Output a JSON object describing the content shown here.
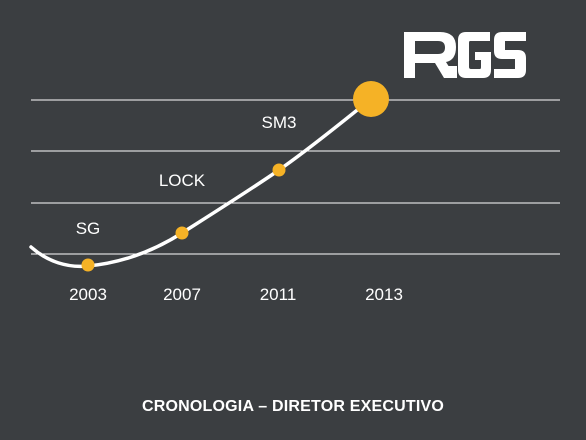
{
  "logo": {
    "text": "RGS",
    "color": "#ffffff"
  },
  "colors": {
    "background": "#3b3e41",
    "line": "#ffffff",
    "marker": "#f5b226",
    "gridline": "#ffffff",
    "text": "#ffffff"
  },
  "footer": {
    "title": "CRONOLOGIA – DIRETOR EXECUTIVO"
  },
  "chart_data": {
    "type": "line",
    "title": "",
    "x": [
      "2003",
      "2007",
      "2011",
      "2013"
    ],
    "tick_labels": [
      "2003",
      "2007",
      "2011",
      "2013"
    ],
    "points": [
      {
        "year": "2003",
        "label": "SG"
      },
      {
        "year": "2007",
        "label": "LOCK"
      },
      {
        "year": "2011",
        "label": "SM3"
      },
      {
        "year": "2013",
        "label": ""
      }
    ],
    "grid": true,
    "y_axis_shown": false,
    "legend": "none"
  }
}
